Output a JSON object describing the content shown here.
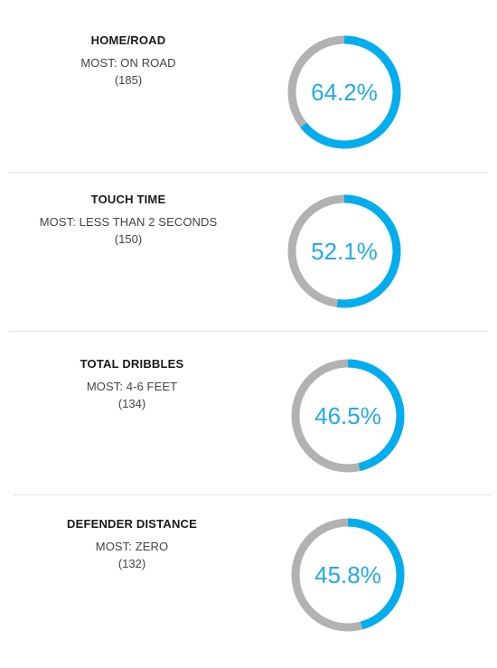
{
  "colors": {
    "highlight": "#00aeef",
    "remainder": "#b2b2b2",
    "label": "#22aaee"
  },
  "chart_data": [
    {
      "type": "pie",
      "title": "HOME/ROAD",
      "most_label": "MOST: ON ROAD",
      "count_label": "(185)",
      "value": 64.2,
      "value_label": "64.2%"
    },
    {
      "type": "pie",
      "title": "TOUCH TIME",
      "most_label": "MOST: LESS THAN 2 SECONDS",
      "count_label": "(150)",
      "value": 52.1,
      "value_label": "52.1%"
    },
    {
      "type": "pie",
      "title": "TOTAL DRIBBLES",
      "most_label": "MOST: 4-6 FEET",
      "count_label": "(134)",
      "value": 46.5,
      "value_label": "46.5%"
    },
    {
      "type": "pie",
      "title": "DEFENDER DISTANCE",
      "most_label": "MOST: ZERO",
      "count_label": "(132)",
      "value": 45.8,
      "value_label": "45.8%"
    }
  ]
}
